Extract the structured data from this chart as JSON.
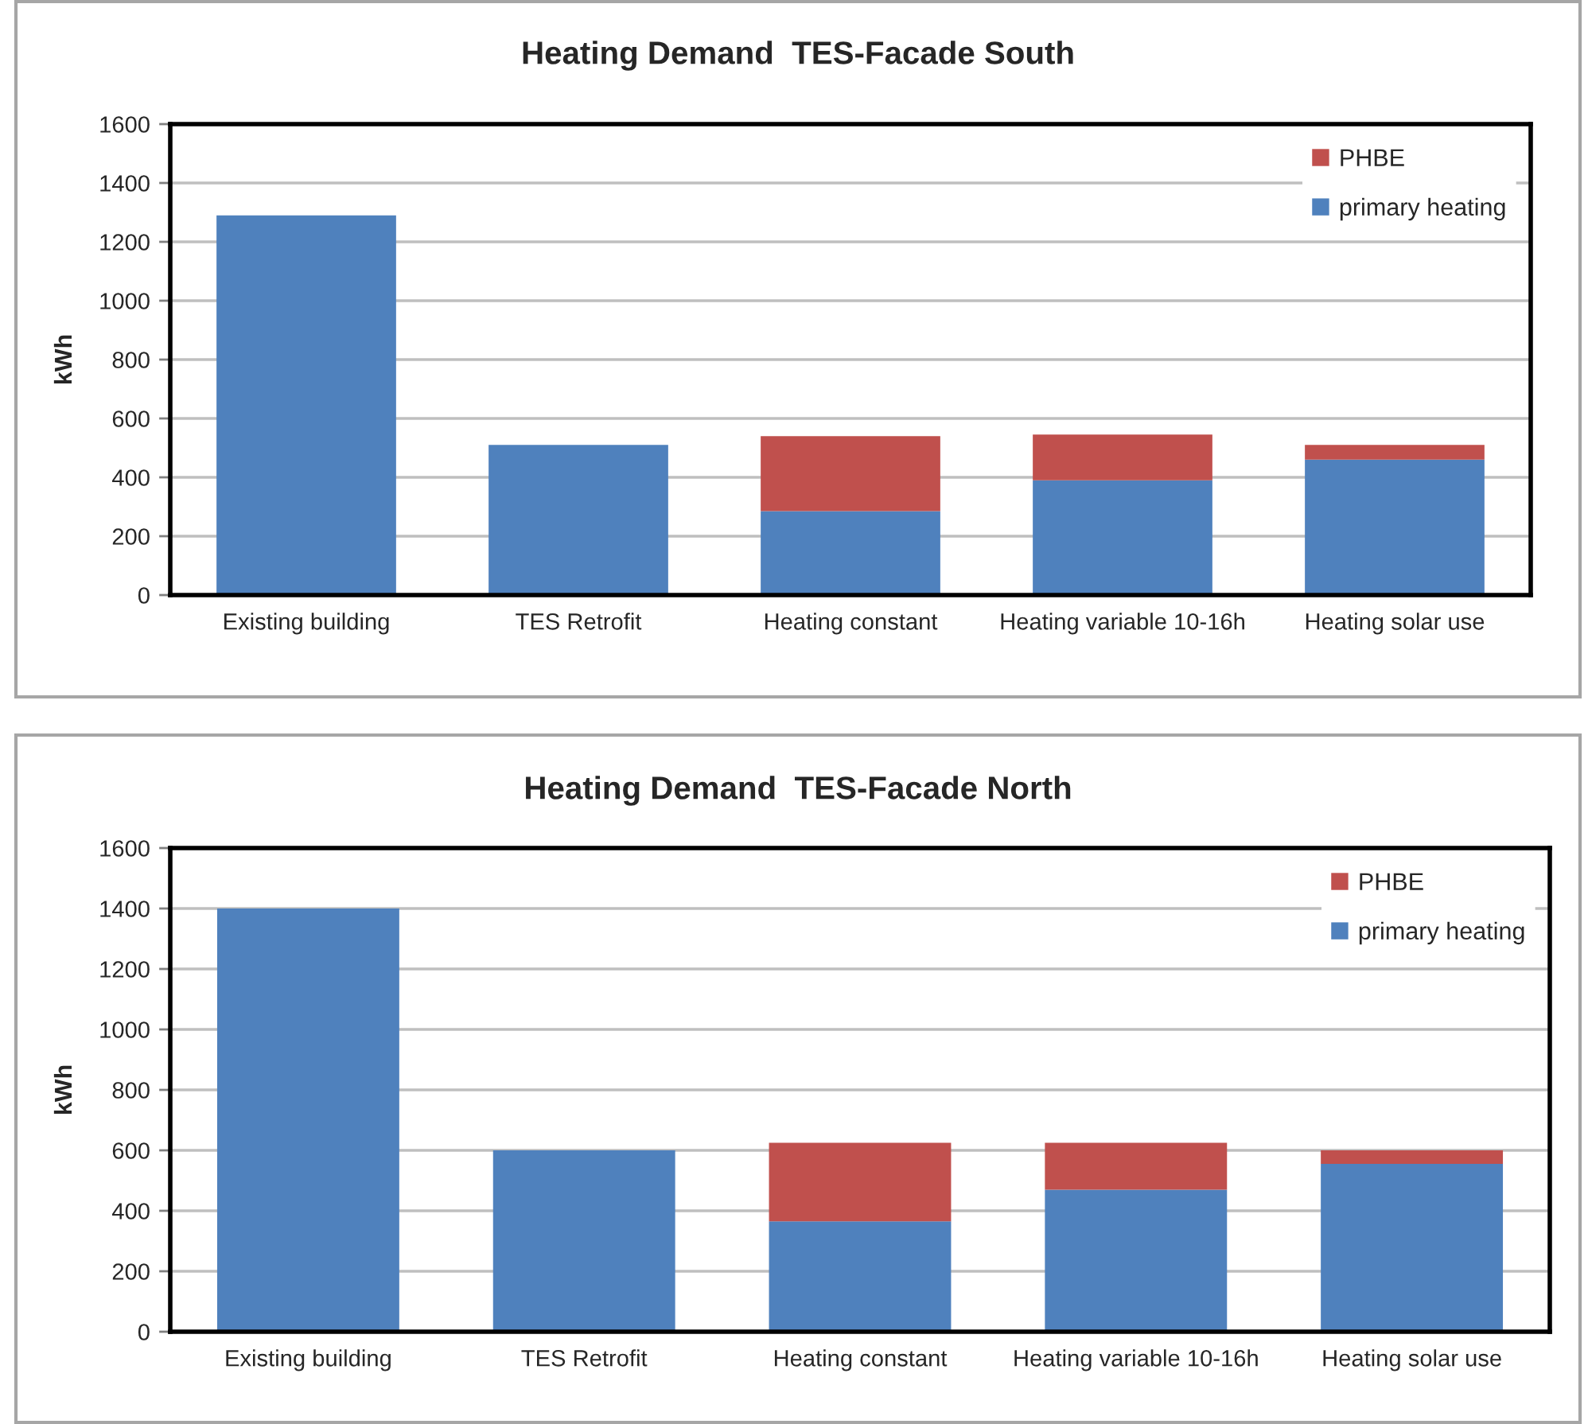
{
  "chart_data": [
    {
      "type": "bar",
      "title": "Heating Demand  TES-Facade South",
      "ylabel": "kWh",
      "stacked": true,
      "categories": [
        "Existing building",
        "TES Retrofit",
        "Heating constant",
        "Heating variable 10-16h",
        "Heating solar use"
      ],
      "series": [
        {
          "name": "primary heating",
          "color": "#4f81bd",
          "values": [
            1290,
            510,
            285,
            390,
            460
          ]
        },
        {
          "name": "PHBE",
          "color": "#c0504d",
          "values": [
            null,
            null,
            255,
            155,
            50
          ]
        }
      ],
      "ylim": [
        0,
        1600
      ],
      "yticks": [
        0,
        200,
        400,
        600,
        800,
        1000,
        1200,
        1400,
        1600
      ],
      "grid": "y",
      "legend": "top right"
    },
    {
      "type": "bar",
      "title": "Heating Demand  TES-Facade North",
      "ylabel": "kWh",
      "stacked": true,
      "categories": [
        "Existing building",
        "TES Retrofit",
        "Heating constant",
        "Heating variable 10-16h",
        "Heating solar use"
      ],
      "series": [
        {
          "name": "primary heating",
          "color": "#4f81bd",
          "values": [
            1400,
            600,
            365,
            470,
            555
          ]
        },
        {
          "name": "PHBE",
          "color": "#c0504d",
          "values": [
            null,
            null,
            260,
            155,
            45
          ]
        }
      ],
      "ylim": [
        0,
        1600
      ],
      "yticks": [
        0,
        200,
        400,
        600,
        800,
        1000,
        1200,
        1400,
        1600
      ],
      "grid": "y",
      "legend": "top right"
    }
  ]
}
